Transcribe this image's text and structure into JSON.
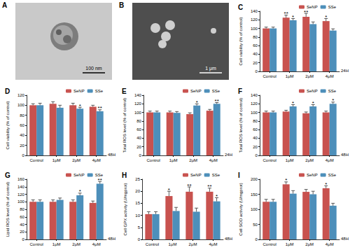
{
  "images": [
    {
      "panel": "A",
      "scale_bar": "100 nm"
    },
    {
      "panel": "B",
      "scale_bar": "1 μm"
    }
  ],
  "chart_data": [
    {
      "type": "bar",
      "title": "C",
      "ylabel": "Cell viability (% of control)",
      "annotation": "24H",
      "categories": [
        "Control",
        "1μM",
        "2μM",
        "4μM"
      ],
      "ylim": [
        0,
        140
      ],
      "yticks": [
        0,
        20,
        40,
        60,
        80,
        100,
        120,
        140
      ],
      "grid": false,
      "legend": "upper right",
      "series": [
        {
          "name": "SeNP",
          "color": "#c8524f",
          "values": [
            100,
            125,
            127,
            117
          ],
          "errors": [
            3,
            6,
            8,
            6
          ],
          "significance": [
            null,
            "**",
            "**",
            "*"
          ]
        },
        {
          "name": "SSe",
          "color": "#4d8fba",
          "values": [
            100,
            119,
            110,
            95
          ],
          "errors": [
            3,
            4,
            5,
            4
          ],
          "significance": [
            null,
            "*",
            null,
            null
          ]
        }
      ]
    },
    {
      "type": "bar",
      "title": "D",
      "ylabel": "Cell viability (% of control)",
      "annotation": "48H",
      "categories": [
        "Control",
        "1μM",
        "2μM",
        "4μM"
      ],
      "ylim": [
        0,
        120
      ],
      "yticks": [
        0,
        20,
        40,
        60,
        80,
        100,
        120
      ],
      "grid": false,
      "legend": "upper right",
      "series": [
        {
          "name": "SeNP",
          "color": "#c8524f",
          "values": [
            100,
            103,
            100,
            97
          ],
          "errors": [
            3,
            4,
            4,
            3
          ],
          "significance": [
            null,
            null,
            null,
            null
          ]
        },
        {
          "name": "SSe",
          "color": "#4d8fba",
          "values": [
            100,
            95,
            93,
            88
          ],
          "errors": [
            4,
            5,
            3,
            3
          ],
          "significance": [
            null,
            null,
            "*",
            "**"
          ]
        }
      ]
    },
    {
      "type": "bar",
      "title": "E",
      "ylabel": "Total ROS level (% of control)",
      "annotation": "24H",
      "categories": [
        "Control",
        "1μM",
        "2μM",
        "4μM"
      ],
      "ylim": [
        0,
        140
      ],
      "yticks": [
        0,
        20,
        40,
        60,
        80,
        100,
        120,
        140
      ],
      "grid": false,
      "legend": "upper right",
      "series": [
        {
          "name": "SeNP",
          "color": "#c8524f",
          "values": [
            100,
            100,
            96,
            104
          ],
          "errors": [
            3,
            3,
            3,
            3
          ],
          "significance": [
            null,
            null,
            null,
            null
          ]
        },
        {
          "name": "SSe",
          "color": "#4d8fba",
          "values": [
            100,
            99,
            116,
            120
          ],
          "errors": [
            3,
            3,
            4,
            3
          ],
          "significance": [
            null,
            null,
            "*",
            "**"
          ]
        }
      ]
    },
    {
      "type": "bar",
      "title": "F",
      "ylabel": "Total ROS level (% of control)",
      "annotation": "48H",
      "categories": [
        "Control",
        "1μM",
        "2μM",
        "4μM"
      ],
      "ylim": [
        0,
        140
      ],
      "yticks": [
        0,
        20,
        40,
        60,
        80,
        100,
        120,
        140
      ],
      "grid": false,
      "legend": "upper right",
      "series": [
        {
          "name": "SeNP",
          "color": "#c8524f",
          "values": [
            100,
            102,
            98,
            100
          ],
          "errors": [
            3,
            3,
            3,
            3
          ],
          "significance": [
            null,
            null,
            null,
            null
          ]
        },
        {
          "name": "SSe",
          "color": "#4d8fba",
          "values": [
            100,
            114,
            114,
            120
          ],
          "errors": [
            3,
            4,
            4,
            4
          ],
          "significance": [
            null,
            "*",
            "*",
            "*"
          ]
        }
      ]
    },
    {
      "type": "bar",
      "title": "G",
      "ylabel": "Lipid ROS level (% of control)",
      "annotation": "48H",
      "categories": [
        "Control",
        "1μM",
        "2μM",
        "4μM"
      ],
      "ylim": [
        0,
        160
      ],
      "yticks": [
        0,
        20,
        40,
        60,
        80,
        100,
        120,
        140,
        160
      ],
      "grid": false,
      "legend": "upper right",
      "series": [
        {
          "name": "SeNP",
          "color": "#c8524f",
          "values": [
            100,
            100,
            100,
            97
          ],
          "errors": [
            5,
            5,
            5,
            5
          ],
          "significance": [
            null,
            null,
            null,
            null
          ]
        },
        {
          "name": "SSe",
          "color": "#4d8fba",
          "values": [
            100,
            105,
            117,
            148
          ],
          "errors": [
            5,
            5,
            6,
            6
          ],
          "significance": [
            null,
            null,
            "*",
            "**"
          ]
        }
      ]
    },
    {
      "type": "bar",
      "title": "H",
      "ylabel": "Cell GPX activity (U/mgprot)",
      "annotation": "48H",
      "categories": [
        "Control",
        "1μM",
        "2μM",
        "4μM"
      ],
      "ylim": [
        0,
        25
      ],
      "yticks": [
        0,
        5,
        10,
        15,
        20,
        25
      ],
      "grid": false,
      "legend": "upper right",
      "series": [
        {
          "name": "SeNP",
          "color": "#c8524f",
          "values": [
            10.5,
            18,
            19.8,
            19.8
          ],
          "errors": [
            1,
            2,
            2,
            1.5
          ],
          "significance": [
            null,
            "*",
            "**",
            "**"
          ]
        },
        {
          "name": "SSe",
          "color": "#4d8fba",
          "values": [
            10.5,
            11.8,
            11.5,
            15.8
          ],
          "errors": [
            1,
            1.5,
            1.5,
            1.5
          ],
          "significance": [
            null,
            null,
            null,
            "*"
          ]
        }
      ]
    },
    {
      "type": "bar",
      "title": "I",
      "ylabel": "Cell SOD activity (U/mgprot)",
      "annotation": "48H",
      "categories": [
        "Control",
        "1μM",
        "2μM",
        "4μM"
      ],
      "ylim": [
        0,
        200
      ],
      "yticks": [
        0,
        50,
        100,
        150,
        200
      ],
      "grid": false,
      "legend": "upper right",
      "series": [
        {
          "name": "SeNP",
          "color": "#c8524f",
          "values": [
            125,
            183,
            158,
            170
          ],
          "errors": [
            8,
            8,
            8,
            8
          ],
          "significance": [
            null,
            "*",
            null,
            "*"
          ]
        },
        {
          "name": "SSe",
          "color": "#4d8fba",
          "values": [
            125,
            152,
            150,
            112
          ],
          "errors": [
            8,
            10,
            10,
            8
          ],
          "significance": [
            null,
            null,
            null,
            null
          ]
        }
      ]
    }
  ]
}
